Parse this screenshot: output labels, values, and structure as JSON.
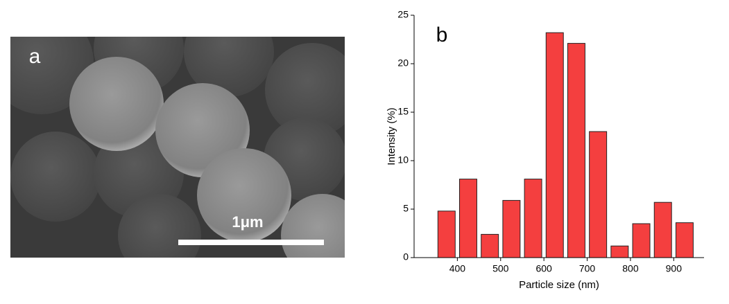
{
  "image": {
    "label": "a",
    "scale_bar": "1μm"
  },
  "chart_data": {
    "type": "bar",
    "title": "b",
    "x": [
      375,
      425,
      475,
      525,
      575,
      625,
      675,
      725,
      775,
      825,
      875,
      925
    ],
    "values": [
      4.8,
      8.1,
      2.4,
      5.9,
      8.1,
      23.2,
      22.1,
      13.0,
      1.2,
      3.5,
      5.7,
      3.6
    ],
    "color": "#f43f3f",
    "xlabel": "Particle size (nm)",
    "ylabel": "Intensity (%)",
    "xlim": [
      300,
      970
    ],
    "xticks": [
      400,
      500,
      600,
      700,
      800,
      900
    ],
    "ylim": [
      0,
      25
    ],
    "yticks": [
      0,
      5,
      10,
      15,
      20,
      25
    ]
  }
}
